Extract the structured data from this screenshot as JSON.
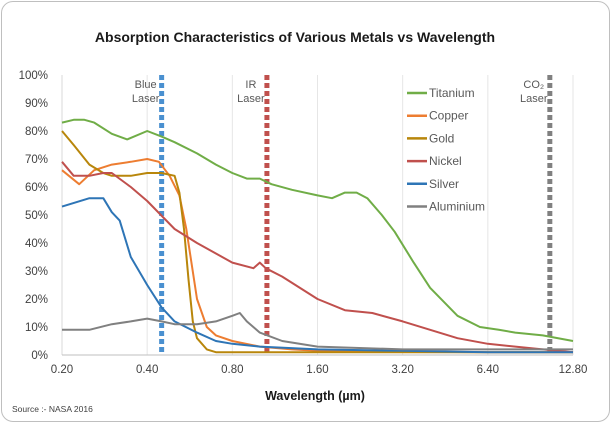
{
  "chart_data": {
    "type": "line",
    "title": "Absorption Characteristics of Various Metals vs Wavelength",
    "xlabel": "Wavelength (µm)",
    "ylabel": "",
    "xscale": "log2",
    "xlim": [
      0.2,
      12.8
    ],
    "ylim": [
      0,
      100
    ],
    "x_ticks": [
      "0.20",
      "0.40",
      "0.80",
      "1.60",
      "3.20",
      "6.40",
      "12.80"
    ],
    "x_tick_values": [
      0.2,
      0.4,
      0.8,
      1.6,
      3.2,
      6.4,
      12.8
    ],
    "y_ticks": [
      "0%",
      "10%",
      "20%",
      "30%",
      "40%",
      "50%",
      "60%",
      "70%",
      "80%",
      "90%",
      "100%"
    ],
    "y_tick_values": [
      0,
      10,
      20,
      30,
      40,
      50,
      60,
      70,
      80,
      90,
      100
    ],
    "grid": "vertical",
    "legend_position": "top-right",
    "series": [
      {
        "name": "Titanium",
        "color": "#70AD47",
        "x": [
          0.2,
          0.22,
          0.24,
          0.26,
          0.3,
          0.34,
          0.4,
          0.45,
          0.5,
          0.6,
          0.7,
          0.8,
          0.9,
          1.0,
          1.1,
          1.3,
          1.6,
          1.8,
          2.0,
          2.2,
          2.4,
          2.7,
          3.0,
          3.5,
          4.0,
          5.0,
          6.0,
          7.0,
          8.0,
          10.0,
          12.8
        ],
        "y": [
          83,
          84,
          84,
          83,
          79,
          77,
          80,
          78,
          76,
          72,
          68,
          65,
          63,
          63,
          61,
          59,
          57,
          56,
          58,
          58,
          56,
          50,
          44,
          33,
          24,
          14,
          10,
          9,
          8,
          7,
          5
        ]
      },
      {
        "name": "Copper",
        "color": "#ED7D31",
        "x": [
          0.2,
          0.23,
          0.26,
          0.3,
          0.35,
          0.4,
          0.44,
          0.48,
          0.52,
          0.55,
          0.6,
          0.65,
          0.7,
          0.8,
          1.0,
          1.3,
          1.6,
          3.2,
          6.4,
          12.8
        ],
        "y": [
          66,
          61,
          66,
          68,
          69,
          70,
          69,
          64,
          57,
          45,
          20,
          10,
          7,
          5,
          3,
          2,
          1.5,
          1.2,
          1,
          1
        ]
      },
      {
        "name": "Gold",
        "color": "#B8860B",
        "x": [
          0.2,
          0.22,
          0.25,
          0.28,
          0.3,
          0.35,
          0.4,
          0.45,
          0.5,
          0.52,
          0.54,
          0.56,
          0.58,
          0.6,
          0.65,
          0.7,
          0.8,
          1.0,
          1.6,
          3.2,
          6.4,
          12.8
        ],
        "y": [
          80,
          75,
          68,
          65,
          64,
          64,
          65,
          65,
          64,
          58,
          45,
          27,
          12,
          6,
          2,
          1,
          1,
          1,
          1,
          1,
          1,
          1
        ]
      },
      {
        "name": "Nickel",
        "color": "#C0504D",
        "x": [
          0.2,
          0.22,
          0.25,
          0.28,
          0.3,
          0.35,
          0.4,
          0.5,
          0.6,
          0.8,
          0.95,
          1.0,
          1.05,
          1.2,
          1.6,
          2.0,
          2.5,
          3.2,
          4.0,
          5.0,
          6.4,
          8.0,
          10.0,
          12.8
        ],
        "y": [
          69,
          64,
          64,
          65,
          65,
          60,
          55,
          45,
          40,
          33,
          31,
          33,
          31,
          28,
          20,
          16,
          15,
          12,
          9,
          6,
          4,
          3,
          2,
          1
        ]
      },
      {
        "name": "Silver",
        "color": "#2E75B6",
        "x": [
          0.2,
          0.25,
          0.28,
          0.3,
          0.32,
          0.35,
          0.4,
          0.45,
          0.5,
          0.6,
          0.7,
          0.8,
          1.0,
          1.6,
          3.2,
          6.4,
          12.8
        ],
        "y": [
          53,
          56,
          56,
          51,
          48,
          35,
          25,
          17,
          12,
          8,
          5,
          4,
          3,
          2,
          1.5,
          1,
          1
        ]
      },
      {
        "name": "Aluminium",
        "color": "#808080",
        "x": [
          0.2,
          0.25,
          0.3,
          0.35,
          0.4,
          0.45,
          0.5,
          0.6,
          0.7,
          0.8,
          0.85,
          0.9,
          1.0,
          1.2,
          1.6,
          3.2,
          6.4,
          12.8
        ],
        "y": [
          9,
          9,
          11,
          12,
          13,
          12,
          11,
          11,
          12,
          14,
          15,
          12,
          8,
          5,
          3,
          2,
          2,
          2
        ]
      }
    ],
    "laser_lines": [
      {
        "label_lines": [
          "Blue",
          "Laser"
        ],
        "x": 0.45,
        "color": "#4A90D0"
      },
      {
        "label_lines": [
          "IR",
          "Laser"
        ],
        "x": 1.06,
        "color": "#C0504D"
      },
      {
        "label_lines": [
          "CO₂",
          "Laser"
        ],
        "x": 10.6,
        "color": "#808080"
      }
    ],
    "source_note": "Source :- NASA 2016"
  }
}
